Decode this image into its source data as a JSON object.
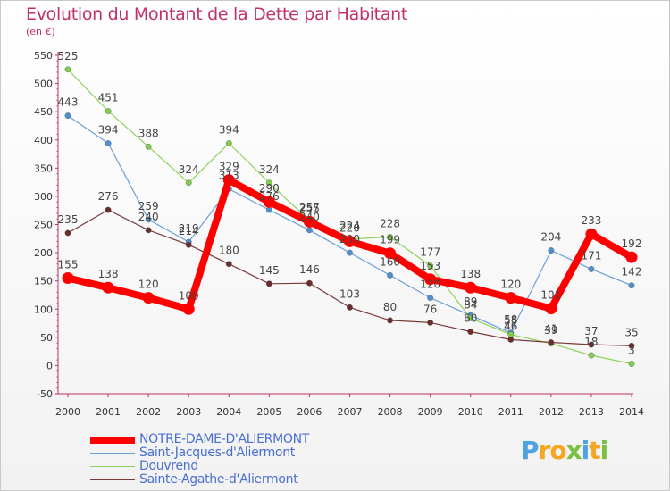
{
  "header": {
    "title": "Evolution du Montant de la Dette par Habitant",
    "subtitle": "(en €)"
  },
  "chart_data": {
    "type": "line",
    "title": "Evolution du Montant de la Dette par Habitant",
    "subtitle": "(en €)",
    "xlabel": "",
    "ylabel": "",
    "x": [
      "2000",
      "2001",
      "2002",
      "2003",
      "2004",
      "2005",
      "2006",
      "2007",
      "2008",
      "2009",
      "2010",
      "2011",
      "2012",
      "2013",
      "2014"
    ],
    "ylim": [
      -50,
      550
    ],
    "yticks": [
      -50,
      0,
      50,
      100,
      150,
      200,
      250,
      300,
      350,
      400,
      450,
      500,
      550
    ],
    "grid": false,
    "legend_position": "bottom-left",
    "series": [
      {
        "name": "NOTRE-DAME-D'ALIERMONT",
        "color": "#ff0000",
        "marker": "#ff0000",
        "width": 8,
        "values": [
          155,
          138,
          120,
          100,
          329,
          290,
          255,
          220,
          199,
          153,
          138,
          120,
          101,
          233,
          192
        ]
      },
      {
        "name": "Saint-Jacques-d'Aliermont",
        "color": "#6aa0d8",
        "marker": "#4f8fcf",
        "width": 1.2,
        "values": [
          443,
          394,
          259,
          219,
          313,
          276,
          240,
          200,
          160,
          120,
          89,
          58,
          204,
          171,
          142
        ]
      },
      {
        "name": "Douvrend",
        "color": "#8ed25a",
        "marker": "#82cc4e",
        "width": 1.2,
        "values": [
          525,
          451,
          388,
          324,
          394,
          324,
          257,
          224,
          228,
          177,
          84,
          55,
          39,
          18,
          3
        ]
      },
      {
        "name": "Sainte-Agathe-d'Aliermont",
        "color": "#7a3a3a",
        "marker": "#6b2c2c",
        "width": 1.2,
        "values": [
          235,
          276,
          240,
          214,
          180,
          145,
          146,
          103,
          80,
          76,
          60,
          46,
          41,
          37,
          35
        ]
      }
    ]
  },
  "brand": {
    "letters": [
      "P",
      "r",
      "o",
      "x",
      "i",
      "t",
      "i"
    ],
    "colors": [
      "#4da3e0",
      "#f5a623",
      "#f5a623",
      "#7bc043",
      "#4da3e0",
      "#f5a623",
      "#7bc043"
    ]
  }
}
